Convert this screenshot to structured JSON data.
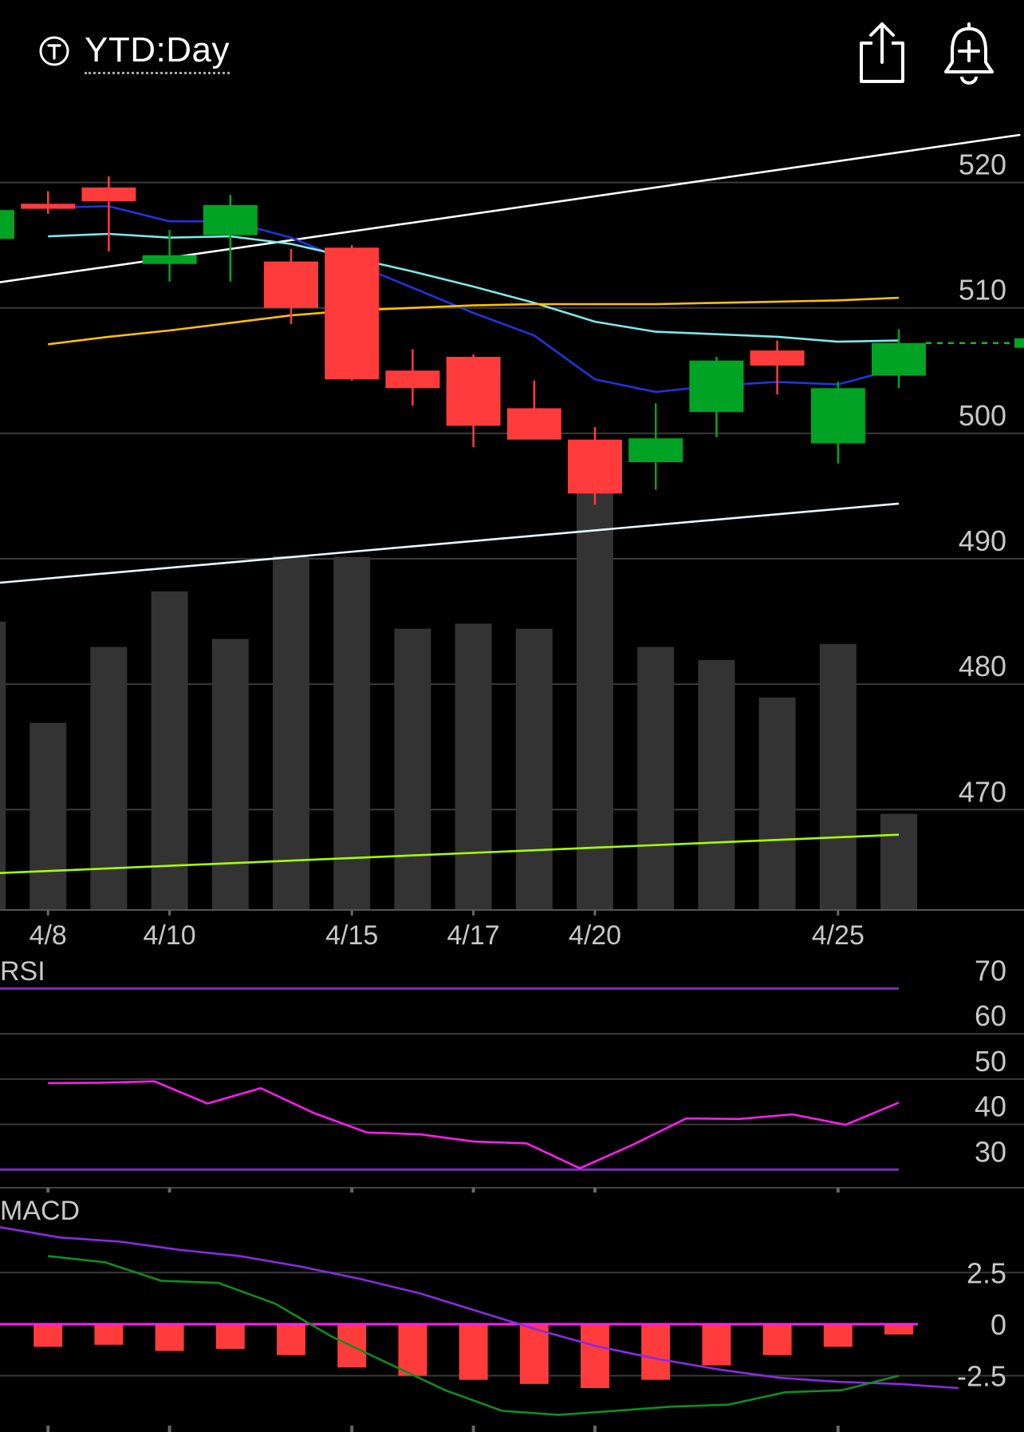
{
  "header": {
    "title": "YTD:Day",
    "ticker_icon": "circled-t-icon",
    "share_icon": "share-icon",
    "alert_icon": "bell-plus-icon"
  },
  "chart_data": [
    {
      "type": "candlestick",
      "title": "",
      "y_ticks": [
        520,
        510,
        500,
        490,
        480,
        470
      ],
      "ylim": [
        462,
        525
      ],
      "x_ticks": [
        {
          "index": 1,
          "label": "4/8"
        },
        {
          "index": 3,
          "label": "4/10"
        },
        {
          "index": 6,
          "label": "4/15"
        },
        {
          "index": 8,
          "label": "4/17"
        },
        {
          "index": 10,
          "label": "4/20"
        },
        {
          "index": 14,
          "label": "4/25"
        }
      ],
      "candles": [
        {
          "open": 515.5,
          "high": 518.0,
          "low": 515.2,
          "close": 517.8
        },
        {
          "open": 518.3,
          "high": 519.3,
          "low": 517.5,
          "close": 517.9
        },
        {
          "open": 519.6,
          "high": 520.5,
          "low": 514.5,
          "close": 518.5
        },
        {
          "open": 513.5,
          "high": 516.2,
          "low": 512.1,
          "close": 514.2
        },
        {
          "open": 515.8,
          "high": 519.0,
          "low": 512.1,
          "close": 518.2
        },
        {
          "open": 513.7,
          "high": 514.7,
          "low": 508.7,
          "close": 510.0
        },
        {
          "open": 514.8,
          "high": 515.0,
          "low": 504.2,
          "close": 504.3
        },
        {
          "open": 505.0,
          "high": 506.7,
          "low": 502.2,
          "close": 503.6
        },
        {
          "open": 506.1,
          "high": 506.3,
          "low": 498.9,
          "close": 500.6
        },
        {
          "open": 502.0,
          "high": 504.2,
          "low": 499.6,
          "close": 499.5
        },
        {
          "open": 499.5,
          "high": 500.5,
          "low": 494.3,
          "close": 495.2
        },
        {
          "open": 497.7,
          "high": 502.4,
          "low": 495.5,
          "close": 499.6
        },
        {
          "open": 501.7,
          "high": 506.1,
          "low": 499.7,
          "close": 505.8
        },
        {
          "open": 506.6,
          "high": 507.4,
          "low": 503.1,
          "close": 505.4
        },
        {
          "open": 499.2,
          "high": 504.1,
          "low": 497.6,
          "close": 503.6
        },
        {
          "open": 504.6,
          "high": 508.3,
          "low": 503.6,
          "close": 507.2
        }
      ],
      "volume": [
        2.85,
        1.85,
        2.6,
        3.15,
        2.68,
        3.5,
        3.49,
        2.78,
        2.83,
        2.78,
        4.3,
        2.6,
        2.47,
        2.1,
        2.63,
        0.95
      ],
      "last_price": 507.2,
      "overlays": [
        {
          "name": "",
          "color": "#2233dd",
          "values": [
            null,
            518.0,
            518.1,
            516.9,
            516.9,
            515.6,
            513.6,
            511.6,
            509.6,
            507.8,
            504.3,
            503.3,
            503.8,
            504.1,
            503.9,
            505.2
          ]
        },
        {
          "name": "",
          "color": "#7ee8e8",
          "values": [
            null,
            515.7,
            515.9,
            515.6,
            515.7,
            515.1,
            514.0,
            512.9,
            511.7,
            510.4,
            508.9,
            508.1,
            507.9,
            507.7,
            507.3,
            507.4
          ]
        },
        {
          "name": "",
          "color": "#ffc000",
          "values": [
            null,
            507.1,
            507.7,
            508.2,
            508.8,
            509.4,
            509.8,
            510.0,
            510.2,
            510.3,
            510.3,
            510.3,
            510.4,
            510.5,
            510.6,
            510.8
          ]
        },
        {
          "name": "",
          "color": "#ffffff",
          "points": [
            [
              0.0,
              511.9
            ],
            [
              17.0,
              523.8
            ]
          ]
        },
        {
          "name": "",
          "color": "#e8fbff",
          "points": [
            [
              0.0,
              488.0
            ],
            [
              15.0,
              494.4
            ]
          ]
        },
        {
          "name": "",
          "color": "#a6ff00",
          "points": [
            [
              0.0,
              464.9
            ],
            [
              15.0,
              468.0
            ]
          ]
        }
      ]
    },
    {
      "type": "line",
      "title": "RSI",
      "y_ticks": [
        70,
        60,
        50,
        40,
        30
      ],
      "ylim": [
        26,
        75
      ],
      "thresholds": [
        70,
        30
      ],
      "values": [
        null,
        49.1,
        49.2,
        49.5,
        44.6,
        48.0,
        42.5,
        38.2,
        37.8,
        36.2,
        35.8,
        30.3,
        35.5,
        41.3,
        41.2,
        42.2,
        39.9,
        44.8
      ]
    },
    {
      "type": "bar",
      "title": "MACD",
      "y_ticks": [
        2.5,
        0,
        -2.5
      ],
      "ylim": [
        -4.3,
        4.6
      ],
      "values": [
        null,
        -1.1,
        -1.0,
        -1.3,
        -1.2,
        -1.5,
        -2.1,
        -2.5,
        -2.7,
        -2.9,
        -3.1,
        -2.7,
        -2.0,
        -1.5,
        -1.1,
        -0.5
      ],
      "macd": [
        null,
        3.3,
        3.0,
        2.1,
        2.0,
        1.0,
        -0.6,
        -1.9,
        -3.2,
        -4.2,
        -4.4,
        -4.2,
        -4.0,
        -3.9,
        -3.3,
        -3.2,
        -2.5
      ],
      "signal": [
        4.7,
        4.2,
        4.0,
        3.6,
        3.3,
        2.8,
        2.2,
        1.5,
        0.6,
        -0.3,
        -1.1,
        -1.7,
        -2.2,
        -2.6,
        -2.8,
        -2.9,
        -3.1
      ]
    }
  ]
}
